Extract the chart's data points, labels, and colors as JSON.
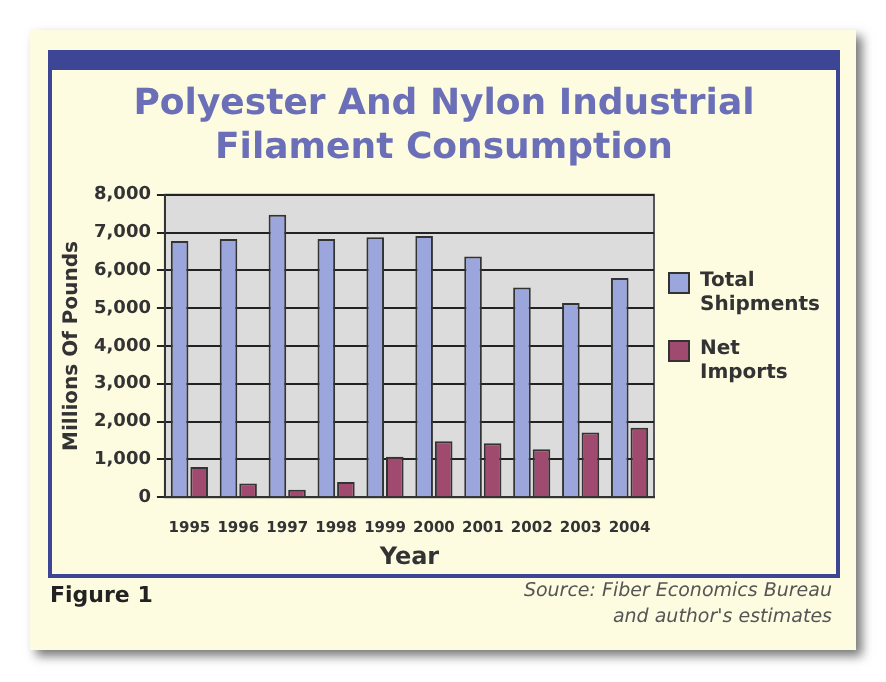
{
  "chart_data": {
    "type": "bar",
    "title": "Polyester And Nylon Industrial Filament Consumption",
    "xlabel": "Year",
    "ylabel": "Millions Of Pounds",
    "categories": [
      "1995",
      "1996",
      "1997",
      "1998",
      "1999",
      "2000",
      "2001",
      "2002",
      "2003",
      "2004"
    ],
    "series": [
      {
        "name": "Total Shipments",
        "color": "#9aa6dc",
        "values": [
          6780,
          6830,
          7470,
          6830,
          6880,
          6910,
          6370,
          5550,
          5140,
          5800
        ]
      },
      {
        "name": "Net Imports",
        "color": "#a04a6f",
        "values": [
          800,
          360,
          200,
          400,
          1070,
          1480,
          1430,
          1270,
          1710,
          1840
        ]
      }
    ],
    "ylim": [
      0,
      8000
    ],
    "yticks": [
      {
        "value": 0,
        "label": "0"
      },
      {
        "value": 1000,
        "label": "1,000"
      },
      {
        "value": 2000,
        "label": "2,000"
      },
      {
        "value": 3000,
        "label": "3,000"
      },
      {
        "value": 4000,
        "label": "4,000"
      },
      {
        "value": 5000,
        "label": "5,000"
      },
      {
        "value": 6000,
        "label": "6,000"
      },
      {
        "value": 7000,
        "label": "7,000"
      },
      {
        "value": 8000,
        "label": "8,000"
      }
    ],
    "grid": "y",
    "legend": "right",
    "annotations": [
      "Figure 1",
      "Source: Fiber Economics Bureau\nand author's estimates"
    ]
  }
}
